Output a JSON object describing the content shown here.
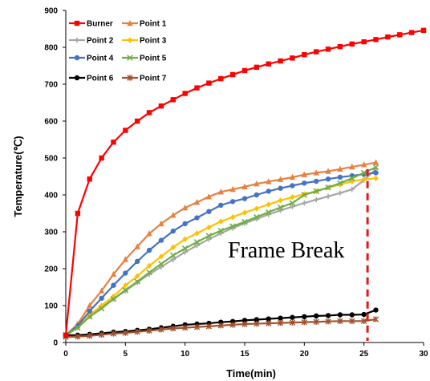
{
  "chart_data": {
    "type": "line",
    "xlabel": "Time(min)",
    "ylabel": "Temperature(℃)",
    "xlim": [
      0,
      30
    ],
    "ylim": [
      0,
      900
    ],
    "x_ticks": [
      "0",
      "5",
      "10",
      "15",
      "20",
      "25",
      "30"
    ],
    "y_ticks": [
      "0",
      "100",
      "200",
      "300",
      "400",
      "500",
      "600",
      "700",
      "800",
      "900"
    ],
    "grid": false,
    "legend_placement": "top-left",
    "annotation": "Frame Break",
    "break_line": {
      "x": 25.3,
      "y_top": 470,
      "color": "#e41a1c"
    },
    "x": [
      0,
      1,
      2,
      3,
      4,
      5,
      6,
      7,
      8,
      9,
      10,
      11,
      12,
      13,
      14,
      15,
      16,
      17,
      18,
      19,
      20,
      21,
      22,
      23,
      24,
      25,
      26
    ],
    "series": [
      {
        "name": "Burner",
        "color": "#ff0000",
        "marker": "square",
        "x": [
          0,
          1,
          2,
          3,
          4,
          5,
          6,
          7,
          8,
          9,
          10,
          11,
          12,
          13,
          14,
          15,
          16,
          17,
          18,
          19,
          20,
          21,
          22,
          23,
          24,
          25,
          26,
          27,
          28,
          29,
          30
        ],
        "values": [
          20,
          350,
          443,
          500,
          543,
          575,
          600,
          623,
          641,
          658,
          675,
          690,
          703,
          715,
          726,
          737,
          746,
          755,
          763,
          771,
          780,
          788,
          795,
          802,
          809,
          815,
          821,
          828,
          834,
          840,
          846
        ]
      },
      {
        "name": "Point 1",
        "color": "#e88040",
        "marker": "triangle",
        "values": [
          20,
          50,
          100,
          140,
          185,
          225,
          260,
          295,
          322,
          345,
          365,
          380,
          395,
          408,
          415,
          422,
          430,
          436,
          442,
          448,
          455,
          460,
          464,
          470,
          476,
          482,
          488
        ]
      },
      {
        "name": "Point 2",
        "color": "#a6a6a6",
        "marker": "plus",
        "values": [
          20,
          40,
          70,
          95,
          118,
          140,
          163,
          185,
          205,
          225,
          245,
          263,
          280,
          296,
          310,
          323,
          335,
          347,
          358,
          368,
          378,
          387,
          396,
          405,
          415,
          440,
          470
        ]
      },
      {
        "name": "Point 3",
        "color": "#ffc000",
        "marker": "diamond",
        "values": [
          20,
          40,
          75,
          100,
          125,
          155,
          180,
          208,
          233,
          258,
          280,
          296,
          312,
          328,
          340,
          352,
          363,
          374,
          385,
          394,
          402,
          410,
          420,
          428,
          437,
          442,
          445
        ]
      },
      {
        "name": "Point 4",
        "color": "#4472c4",
        "marker": "circle",
        "values": [
          20,
          45,
          85,
          120,
          155,
          188,
          220,
          250,
          277,
          302,
          322,
          338,
          355,
          372,
          382,
          390,
          400,
          410,
          418,
          425,
          432,
          437,
          443,
          448,
          452,
          456,
          460
        ]
      },
      {
        "name": "Point 5",
        "color": "#70ad47",
        "marker": "x",
        "values": [
          20,
          40,
          70,
          92,
          118,
          142,
          165,
          190,
          213,
          236,
          255,
          272,
          289,
          303,
          315,
          327,
          340,
          353,
          366,
          378,
          400,
          410,
          420,
          432,
          445,
          460,
          475
        ]
      },
      {
        "name": "Point 6",
        "color": "#000000",
        "marker": "circle",
        "values": [
          20,
          20,
          22,
          25,
          28,
          30,
          33,
          36,
          40,
          44,
          48,
          50,
          52,
          55,
          57,
          60,
          62,
          64,
          66,
          68,
          70,
          72,
          73,
          75,
          75,
          76,
          88
        ]
      },
      {
        "name": "Point 7",
        "color": "#a0522d",
        "marker": "star",
        "values": [
          15,
          16,
          18,
          21,
          24,
          26,
          29,
          32,
          35,
          38,
          40,
          42,
          44,
          46,
          48,
          50,
          51,
          52,
          53,
          54,
          55,
          56,
          57,
          58,
          58,
          58,
          63
        ]
      }
    ]
  }
}
